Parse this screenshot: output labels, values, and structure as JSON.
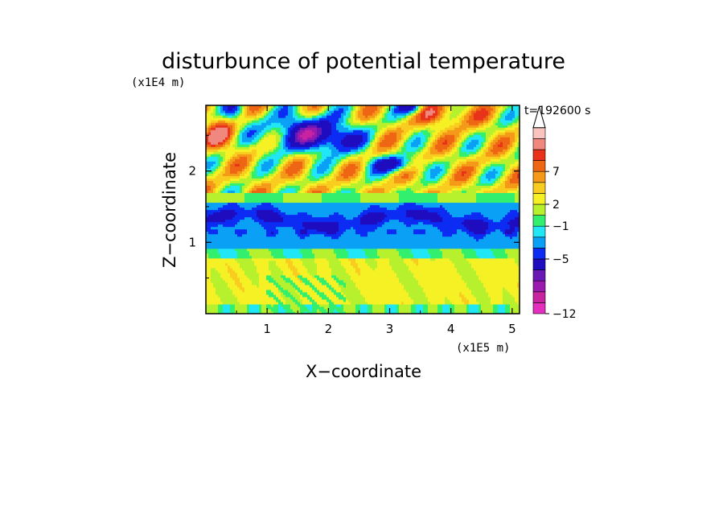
{
  "chart_data": {
    "type": "heatmap",
    "title": "disturbunce of potential temperature",
    "xlabel": "X−coordinate",
    "ylabel": "Z−coordinate",
    "x_unit": "(x1E5 m)",
    "z_unit": "(x1E4 m)",
    "time_label": "t=192600 s",
    "xlim": [
      0,
      5.12
    ],
    "zlim": [
      0,
      2.92
    ],
    "x_ticks": [
      {
        "value": 1,
        "label": "1"
      },
      {
        "value": 2,
        "label": "2"
      },
      {
        "value": 3,
        "label": "3"
      },
      {
        "value": 4,
        "label": "4"
      },
      {
        "value": 5,
        "label": "5"
      }
    ],
    "z_ticks": [
      {
        "value": 1,
        "label": "1"
      },
      {
        "value": 2,
        "label": "2"
      }
    ],
    "colorbar": {
      "colors": [
        "#e22fbe",
        "#c8249f",
        "#9a1ab0",
        "#6a18b3",
        "#1f0cbf",
        "#0c2cf3",
        "#0aa0f5",
        "#20e6f5",
        "#32f06e",
        "#b7f12e",
        "#f6f125",
        "#f8cd1f",
        "#f49a18",
        "#ee6614",
        "#e8331a",
        "#f08880",
        "#f9c4bf"
      ],
      "labels": [
        {
          "text": "−12",
          "level": 0
        },
        {
          "text": "−5",
          "level": 5
        },
        {
          "text": "−1",
          "level": 8
        },
        {
          "text": "2",
          "level": 10
        },
        {
          "text": "7",
          "level": 13
        }
      ],
      "extend_max": true
    },
    "field_description": "2D contour fill of potential temperature disturbance; near-surface field slightly positive, strongly negative band near z≈1.2–1.5 (x1E4 m), alternating positive/negative tilted bands aloft"
  }
}
